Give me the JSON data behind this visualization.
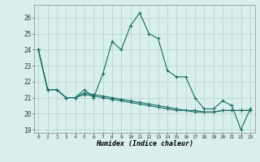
{
  "xlabel": "Humidex (Indice chaleur)",
  "background_color": "#d8efec",
  "grid_color": "#b8d8d4",
  "line_color": "#1a6b60",
  "xlim": [
    -0.5,
    23.5
  ],
  "ylim": [
    18.8,
    26.8
  ],
  "yticks": [
    19,
    20,
    21,
    22,
    23,
    24,
    25,
    26
  ],
  "xticks": [
    0,
    1,
    2,
    3,
    4,
    5,
    6,
    7,
    8,
    9,
    10,
    11,
    12,
    13,
    14,
    15,
    16,
    17,
    18,
    19,
    20,
    21,
    22,
    23
  ],
  "series1": [
    24.0,
    21.5,
    21.5,
    21.0,
    21.0,
    21.5,
    21.0,
    22.5,
    24.5,
    24.0,
    25.5,
    26.3,
    25.0,
    24.7,
    22.7,
    22.3,
    22.3,
    21.0,
    20.3,
    20.3,
    20.8,
    20.5,
    19.0,
    20.3
  ],
  "series2": [
    24.0,
    21.5,
    21.5,
    21.0,
    21.0,
    21.3,
    21.2,
    21.1,
    21.0,
    20.9,
    20.8,
    20.7,
    20.6,
    20.5,
    20.4,
    20.3,
    20.2,
    20.2,
    20.1,
    20.1,
    20.2,
    20.2,
    20.2,
    20.2
  ],
  "series3": [
    24.0,
    21.5,
    21.5,
    21.0,
    21.0,
    21.2,
    21.1,
    21.0,
    20.9,
    20.8,
    20.7,
    20.6,
    20.5,
    20.4,
    20.3,
    20.2,
    20.2,
    20.1,
    20.1,
    20.1,
    20.2,
    20.2,
    20.2,
    20.2
  ]
}
